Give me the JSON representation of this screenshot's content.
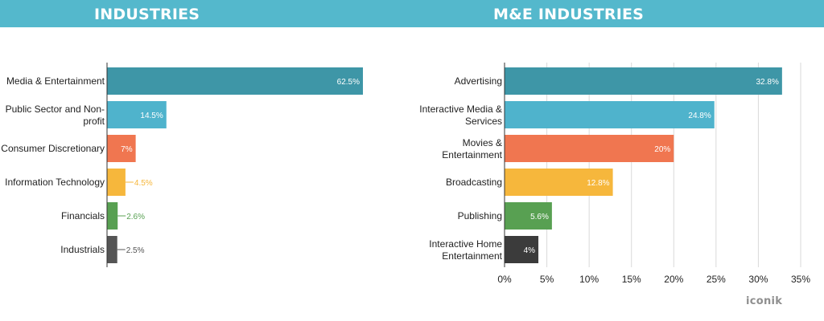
{
  "header": {
    "left_title": "INDUSTRIES",
    "right_title": "M&E INDUSTRIES"
  },
  "logo": "iconik",
  "colors": {
    "header_band": "#54b8cc",
    "teal_dark": "#3e96a7",
    "teal_light": "#4fb3cc",
    "orange": "#f07650",
    "yellow": "#f6b73c",
    "green": "#58a052",
    "gray": "#555555",
    "dark": "#3b3b3b"
  },
  "chart_data": [
    {
      "type": "bar",
      "orientation": "horizontal",
      "title": "INDUSTRIES",
      "categories": [
        [
          "Media & Entertainment"
        ],
        [
          "Public Sector and Non-",
          "profit"
        ],
        [
          "Consumer Discretionary"
        ],
        [
          "Information Technology"
        ],
        [
          "Financials"
        ],
        [
          "Industrials"
        ]
      ],
      "values": [
        62.5,
        14.5,
        7,
        4.5,
        2.6,
        2.5
      ],
      "value_labels": [
        "62.5%",
        "14.5%",
        "7%",
        "4.5%",
        "2.6%",
        "2.5%"
      ],
      "colors": [
        "#3e96a7",
        "#4fb3cc",
        "#f07650",
        "#f6b73c",
        "#58a052",
        "#555555"
      ],
      "xlim": [
        0,
        62.5
      ],
      "grid": false,
      "show_x_axis": false
    },
    {
      "type": "bar",
      "orientation": "horizontal",
      "title": "M&E INDUSTRIES",
      "categories": [
        [
          "Advertising"
        ],
        [
          "Interactive Media &",
          "Services"
        ],
        [
          "Movies &",
          "Entertainment"
        ],
        [
          "Broadcasting"
        ],
        [
          "Publishing"
        ],
        [
          "Interactive Home",
          "Entertainment"
        ]
      ],
      "values": [
        32.8,
        24.8,
        20,
        12.8,
        5.6,
        4
      ],
      "value_labels": [
        "32.8%",
        "24.8%",
        "20%",
        "12.8%",
        "5.6%",
        "4%"
      ],
      "colors": [
        "#3e96a7",
        "#4fb3cc",
        "#f07650",
        "#f6b73c",
        "#58a052",
        "#3b3b3b"
      ],
      "xlim": [
        0,
        35
      ],
      "x_ticks": [
        "0%",
        "5%",
        "10%",
        "15%",
        "20%",
        "25%",
        "30%",
        "35%"
      ],
      "grid": true,
      "show_x_axis": true
    }
  ]
}
